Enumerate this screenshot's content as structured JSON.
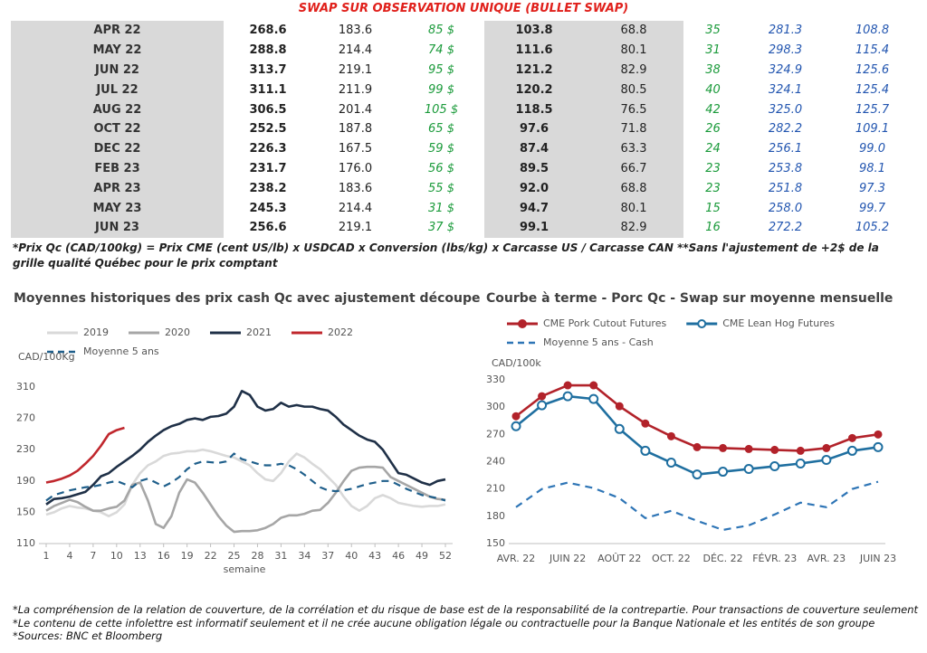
{
  "header": {
    "title": "SWAP SUR OBSERVATION UNIQUE (BULLET SWAP)"
  },
  "table": {
    "rows": [
      [
        "APR 22",
        "268.6",
        "183.6",
        "85 $",
        "103.8",
        "68.8",
        "35",
        "281.3",
        "108.8"
      ],
      [
        "MAY 22",
        "288.8",
        "214.4",
        "74 $",
        "111.6",
        "80.1",
        "31",
        "298.3",
        "115.4"
      ],
      [
        "JUN 22",
        "313.7",
        "219.1",
        "95 $",
        "121.2",
        "82.9",
        "38",
        "324.9",
        "125.6"
      ],
      [
        "JUL 22",
        "311.1",
        "211.9",
        "99 $",
        "120.2",
        "80.5",
        "40",
        "324.1",
        "125.4"
      ],
      [
        "AUG 22",
        "306.5",
        "201.4",
        "105 $",
        "118.5",
        "76.5",
        "42",
        "325.0",
        "125.7"
      ],
      [
        "OCT 22",
        "252.5",
        "187.8",
        "65 $",
        "97.6",
        "71.8",
        "26",
        "282.2",
        "109.1"
      ],
      [
        "DEC 22",
        "226.3",
        "167.5",
        "59 $",
        "87.4",
        "63.3",
        "24",
        "256.1",
        "99.0"
      ],
      [
        "FEB 23",
        "231.7",
        "176.0",
        "56 $",
        "89.5",
        "66.7",
        "23",
        "253.8",
        "98.1"
      ],
      [
        "APR 23",
        "238.2",
        "183.6",
        "55 $",
        "92.0",
        "68.8",
        "23",
        "251.8",
        "97.3"
      ],
      [
        "MAY 23",
        "245.3",
        "214.4",
        "31 $",
        "94.7",
        "80.1",
        "15",
        "258.0",
        "99.7"
      ],
      [
        "JUN 23",
        "256.6",
        "219.1",
        "37 $",
        "99.1",
        "82.9",
        "16",
        "272.2",
        "105.2"
      ]
    ]
  },
  "note": "*Prix Qc (CAD/100kg) = Prix CME (cent US/lb) x USDCAD x Conversion (lbs/kg) x Carcasse US / Carcasse CAN **Sans l'ajustement de +2$ de la grille qualité Québec pour le prix comptant",
  "chart_data": [
    {
      "type": "line",
      "title": "Moyennes historiques des prix cash Qc avec ajustement découpe",
      "y_label": "CAD/100Kg",
      "x_label": "semaine",
      "x": [
        1,
        2,
        3,
        4,
        5,
        6,
        7,
        8,
        9,
        10,
        11,
        12,
        13,
        14,
        15,
        16,
        17,
        18,
        19,
        20,
        21,
        22,
        23,
        24,
        25,
        26,
        27,
        28,
        29,
        30,
        31,
        32,
        33,
        34,
        35,
        36,
        37,
        38,
        39,
        40,
        41,
        42,
        43,
        44,
        45,
        46,
        47,
        48,
        49,
        50,
        51,
        52
      ],
      "xlim": [
        1,
        52
      ],
      "xticks": [
        1,
        4,
        7,
        10,
        13,
        16,
        19,
        22,
        25,
        28,
        31,
        34,
        37,
        40,
        43,
        46,
        49,
        52
      ],
      "ylim": [
        110,
        310
      ],
      "yticks": [
        110,
        150,
        190,
        230,
        270,
        310
      ],
      "grid": false,
      "series": [
        {
          "name": "2019",
          "color": "#d9d9d9",
          "values": [
            147,
            150,
            155,
            158,
            156,
            155,
            152,
            150,
            145,
            150,
            160,
            185,
            200,
            210,
            215,
            222,
            225,
            226,
            228,
            228,
            230,
            228,
            225,
            222,
            220,
            215,
            210,
            200,
            192,
            190,
            200,
            215,
            225,
            220,
            212,
            205,
            195,
            185,
            170,
            158,
            152,
            158,
            168,
            172,
            168,
            162,
            160,
            158,
            157,
            158,
            158,
            160
          ]
        },
        {
          "name": "2020",
          "color": "#a6a6a6",
          "values": [
            152,
            158,
            162,
            166,
            163,
            157,
            152,
            152,
            155,
            157,
            165,
            185,
            188,
            165,
            135,
            130,
            145,
            175,
            192,
            188,
            175,
            160,
            145,
            133,
            125,
            126,
            126,
            127,
            130,
            135,
            143,
            146,
            146,
            148,
            152,
            153,
            162,
            175,
            190,
            203,
            207,
            208,
            208,
            207,
            195,
            190,
            185,
            180,
            175,
            170,
            167,
            166
          ]
        },
        {
          "name": "2021",
          "color": "#1f3047",
          "values": [
            160,
            167,
            168,
            170,
            173,
            176,
            185,
            196,
            200,
            208,
            215,
            222,
            230,
            240,
            248,
            255,
            260,
            263,
            268,
            270,
            268,
            272,
            273,
            276,
            285,
            305,
            300,
            285,
            280,
            282,
            290,
            285,
            287,
            285,
            285,
            282,
            280,
            272,
            262,
            255,
            248,
            243,
            240,
            230,
            215,
            200,
            198,
            193,
            188,
            185,
            190,
            192
          ]
        },
        {
          "name": "2022",
          "color": "#c0272d",
          "values": [
            188,
            190,
            193,
            197,
            203,
            212,
            222,
            235,
            250,
            255,
            258,
            null,
            null,
            null,
            null,
            null,
            null,
            null,
            null,
            null,
            null,
            null,
            null,
            null,
            null,
            null,
            null,
            null,
            null,
            null,
            null,
            null,
            null,
            null,
            null,
            null,
            null,
            null,
            null,
            null,
            null,
            null,
            null,
            null,
            null,
            null,
            null,
            null,
            null,
            null,
            null,
            null
          ]
        },
        {
          "name": "Moyenne 5 ans",
          "color": "#1f5f8b",
          "dashed": true,
          "values": [
            165,
            172,
            175,
            178,
            180,
            182,
            183,
            185,
            188,
            190,
            186,
            182,
            190,
            193,
            188,
            183,
            188,
            195,
            205,
            212,
            215,
            214,
            213,
            215,
            225,
            218,
            215,
            212,
            210,
            210,
            212,
            210,
            205,
            198,
            190,
            182,
            178,
            177,
            178,
            180,
            183,
            186,
            188,
            190,
            190,
            185,
            180,
            176,
            172,
            170,
            168,
            165
          ]
        }
      ]
    },
    {
      "type": "line",
      "title": "Courbe à terme - Porc Qc - Swap sur moyenne mensuelle",
      "y_label": "CAD/100k",
      "categories": [
        "AVR. 22",
        null,
        "JUIN 22",
        null,
        "AOÛT 22",
        null,
        "OCT. 22",
        null,
        "DÉC. 22",
        null,
        "FÉVR. 23",
        null,
        "AVR. 23",
        null,
        "JUIN 23"
      ],
      "ylim": [
        150,
        330
      ],
      "yticks": [
        150,
        180,
        210,
        240,
        270,
        300,
        330
      ],
      "grid": false,
      "series": [
        {
          "name": "CME Pork Cutout Futures",
          "color": "#b2222a",
          "marker": "filled",
          "values": [
            290,
            312,
            324,
            324,
            301,
            282,
            268,
            256,
            255,
            254,
            253,
            252,
            255,
            266,
            270
          ]
        },
        {
          "name": "CME Lean Hog Futures",
          "color": "#1f6fa0",
          "marker": "open",
          "values": [
            279,
            302,
            312,
            309,
            276,
            252,
            239,
            226,
            229,
            232,
            235,
            238,
            242,
            252,
            256
          ]
        },
        {
          "name": "Moyenne 5 ans - Cash",
          "color": "#2e75b6",
          "dashed": true,
          "values": [
            190,
            210,
            217,
            211,
            200,
            178,
            186,
            175,
            165,
            170,
            182,
            195,
            190,
            210,
            218
          ]
        }
      ]
    }
  ],
  "footer": [
    "*La compréhension de la relation de couverture, de la corrélation et du risque de base est de la responsabilité de la contrepartie. Pour transactions de couverture seulement",
    "*Le contenu de cette infolettre est informatif seulement et il ne crée aucune obligation légale ou contractuelle pour la Banque Nationale et les entités de son groupe",
    "*Sources: BNC et Bloomberg"
  ]
}
